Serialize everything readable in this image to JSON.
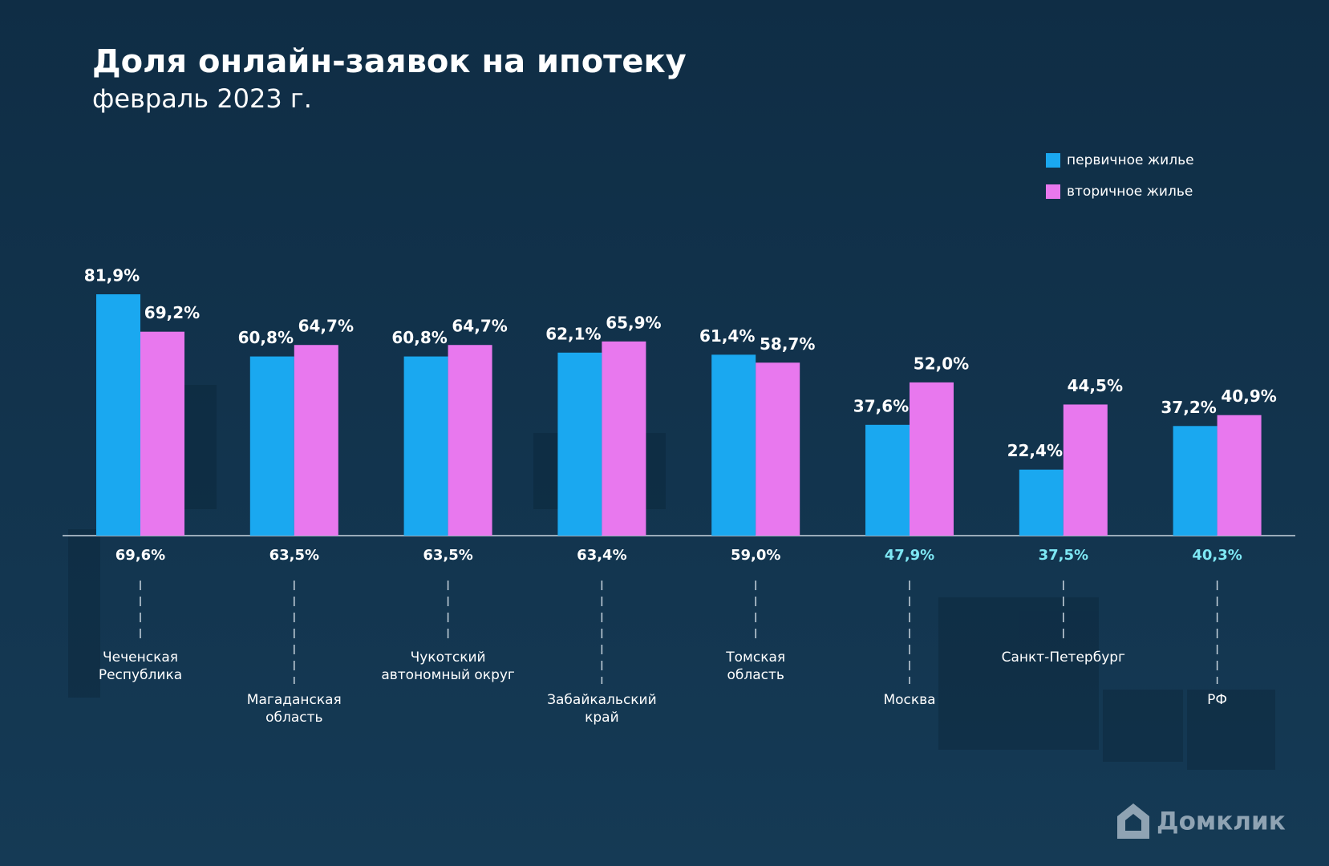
{
  "chart_data": {
    "type": "bar",
    "title": "Доля онлайн-заявок на ипотеку",
    "subtitle": "февраль 2023 г.",
    "categories": [
      "Чеченская\nРеспублика",
      "Магаданская\nобласть",
      "Чукотский\nавтономный округ",
      "Забайкальский\nкрай",
      "Томская\nобласть",
      "Москва",
      "Санкт-Петербург",
      "РФ"
    ],
    "series": [
      {
        "name": "первичное жилье",
        "color": "#1aa8f0",
        "values": [
          81.9,
          60.8,
          60.8,
          62.1,
          61.4,
          37.6,
          22.4,
          37.2
        ],
        "value_labels": [
          "81,9%",
          "60,8%",
          "60,8%",
          "62,1%",
          "61,4%",
          "37,6%",
          "22,4%",
          "37,2%"
        ]
      },
      {
        "name": "вторичное жилье",
        "color": "#e878ee",
        "values": [
          69.2,
          64.7,
          64.7,
          65.9,
          58.7,
          52.0,
          44.5,
          40.9
        ],
        "value_labels": [
          "69,2%",
          "64,7%",
          "64,7%",
          "65,9%",
          "58,7%",
          "52,0%",
          "44,5%",
          "40,9%"
        ]
      }
    ],
    "totals": [
      69.6,
      63.5,
      63.5,
      63.4,
      59.0,
      47.9,
      37.5,
      40.3
    ],
    "totals_labels": [
      "69,6%",
      "63,5%",
      "63,5%",
      "63,4%",
      "59,0%",
      "47,9%",
      "37,5%",
      "40,3%"
    ],
    "totals_colors": [
      "#ffffff",
      "#ffffff",
      "#ffffff",
      "#ffffff",
      "#ffffff",
      "#7ee8f4",
      "#7ee8f4",
      "#7ee8f4"
    ],
    "legend": "top-right",
    "logo": "Домклик"
  }
}
